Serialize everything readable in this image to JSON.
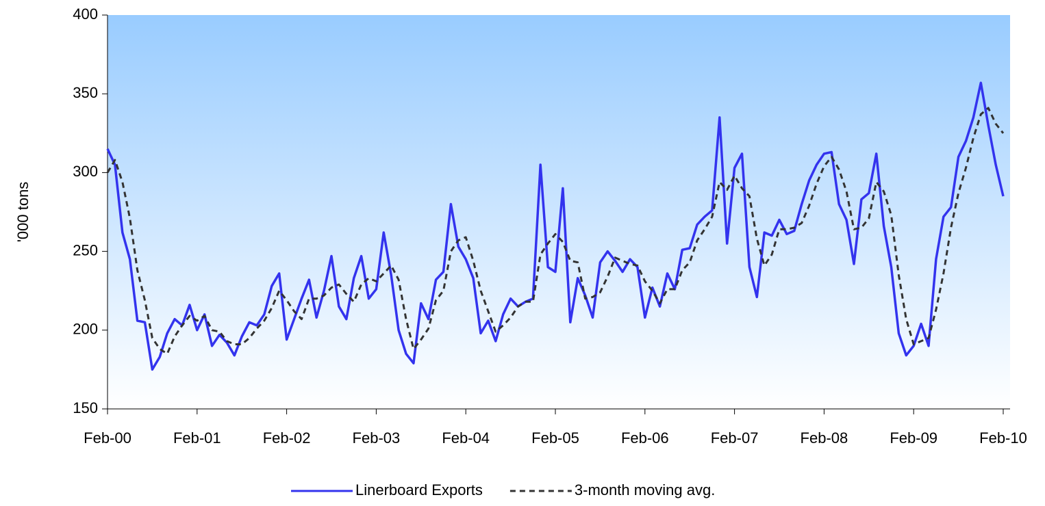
{
  "chart_data": {
    "type": "line",
    "y_label": "'000 tons",
    "categories": [
      "Feb-00",
      null,
      null,
      null,
      null,
      null,
      null,
      null,
      null,
      null,
      null,
      null,
      "Feb-01",
      null,
      null,
      null,
      null,
      null,
      null,
      null,
      null,
      null,
      null,
      null,
      "Feb-02",
      null,
      null,
      null,
      null,
      null,
      null,
      null,
      null,
      null,
      null,
      null,
      "Feb-03",
      null,
      null,
      null,
      null,
      null,
      null,
      null,
      null,
      null,
      null,
      null,
      "Feb-04",
      null,
      null,
      null,
      null,
      null,
      null,
      null,
      null,
      null,
      null,
      null,
      "Feb-05",
      null,
      null,
      null,
      null,
      null,
      null,
      null,
      null,
      null,
      null,
      null,
      "Feb-06",
      null,
      null,
      null,
      null,
      null,
      null,
      null,
      null,
      null,
      null,
      null,
      "Feb-07",
      null,
      null,
      null,
      null,
      null,
      null,
      null,
      null,
      null,
      null,
      null,
      "Feb-08",
      null,
      null,
      null,
      null,
      null,
      null,
      null,
      null,
      null,
      null,
      null,
      "Feb-09",
      null,
      null,
      null,
      null,
      null,
      null,
      null,
      null,
      null,
      null,
      null,
      "Feb-10"
    ],
    "series": [
      {
        "name": "Linerboard Exports",
        "color": "#3333ee",
        "dash": false,
        "values": [
          315,
          305,
          262,
          245,
          206,
          205,
          175,
          183,
          198,
          207,
          203,
          216,
          200,
          210,
          190,
          197,
          192,
          184,
          196,
          205,
          203,
          210,
          228,
          236,
          194,
          207,
          220,
          232,
          208,
          225,
          247,
          215,
          207,
          233,
          247,
          220,
          226,
          262,
          235,
          200,
          185,
          179,
          217,
          207,
          232,
          237,
          280,
          253,
          245,
          233,
          198,
          206,
          193,
          210,
          220,
          215,
          218,
          220,
          305,
          240,
          237,
          290,
          205,
          233,
          222,
          208,
          243,
          250,
          244,
          237,
          245,
          240,
          208,
          227,
          215,
          236,
          226,
          251,
          252,
          267,
          272,
          276,
          335,
          255,
          303,
          312,
          240,
          221,
          262,
          260,
          270,
          261,
          263,
          280,
          295,
          305,
          312,
          313,
          280,
          270,
          242,
          283,
          287,
          312,
          266,
          240,
          198,
          184,
          190,
          204,
          190,
          245,
          272,
          278,
          310,
          320,
          335,
          357,
          330,
          305,
          285
        ]
      },
      {
        "name": "3-month moving avg.",
        "color": "#333333",
        "dash": true,
        "values": [
          300,
          308,
          294,
          271,
          238,
          219,
          195,
          188,
          185,
          196,
          203,
          209,
          206,
          209,
          200,
          199,
          193,
          191,
          191,
          195,
          201,
          206,
          214,
          225,
          219,
          212,
          207,
          220,
          220,
          222,
          227,
          229,
          223,
          218,
          229,
          233,
          231,
          236,
          241,
          232,
          207,
          188,
          194,
          201,
          219,
          225,
          250,
          257,
          259,
          244,
          225,
          212,
          199,
          203,
          208,
          215,
          218,
          218,
          248,
          255,
          261,
          256,
          244,
          243,
          220,
          221,
          224,
          234,
          246,
          244,
          242,
          241,
          231,
          225,
          217,
          226,
          226,
          238,
          243,
          257,
          264,
          272,
          294,
          289,
          298,
          290,
          285,
          258,
          241,
          248,
          264,
          264,
          265,
          268,
          279,
          293,
          304,
          310,
          302,
          288,
          264,
          265,
          271,
          294,
          288,
          273,
          235,
          207,
          191,
          193,
          195,
          213,
          236,
          265,
          287,
          303,
          322,
          337,
          341,
          331,
          325
        ]
      }
    ],
    "ylim": [
      150,
      400
    ],
    "yticks": [
      150,
      200,
      250,
      300,
      350,
      400
    ],
    "legend": "bottom"
  }
}
